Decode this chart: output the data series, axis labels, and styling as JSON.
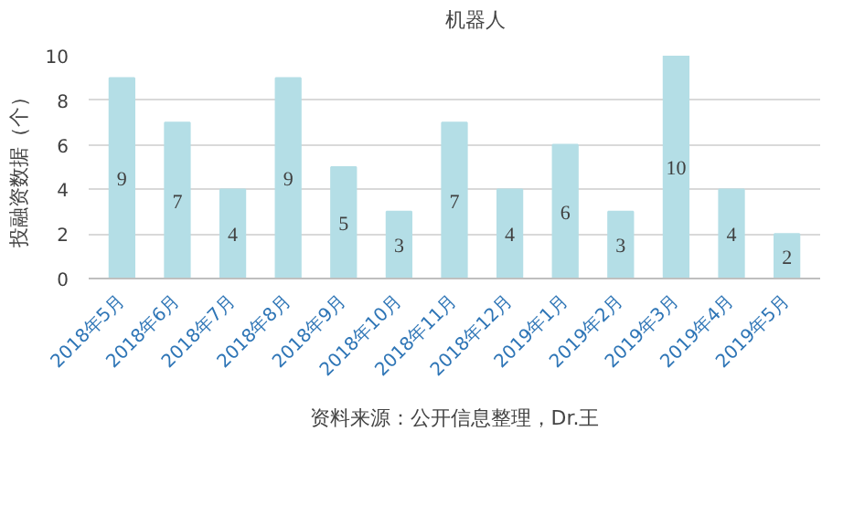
{
  "chart_data": {
    "type": "bar",
    "ylabel": "投融资数据（个）",
    "categories": [
      "2018年5月",
      "2018年6月",
      "2018年7月",
      "2018年8月",
      "2018年9月",
      "2018年10月",
      "2018年11月",
      "2018年12月",
      "2019年1月",
      "2019年2月",
      "2019年3月",
      "2019年4月",
      "2019年5月"
    ],
    "series": [
      {
        "name": "机器人",
        "color": "#b4dee6",
        "values": [
          9,
          7,
          4,
          9,
          5,
          3,
          7,
          4,
          6,
          3,
          10,
          4,
          2
        ]
      }
    ],
    "ylim": [
      0,
      10
    ],
    "yticks": [
      0,
      2,
      4,
      6,
      8,
      10
    ],
    "grid": "y",
    "legend": "top",
    "data_labels": true,
    "annotations": [
      "资料来源：公开信息整理，Dr.王"
    ]
  }
}
